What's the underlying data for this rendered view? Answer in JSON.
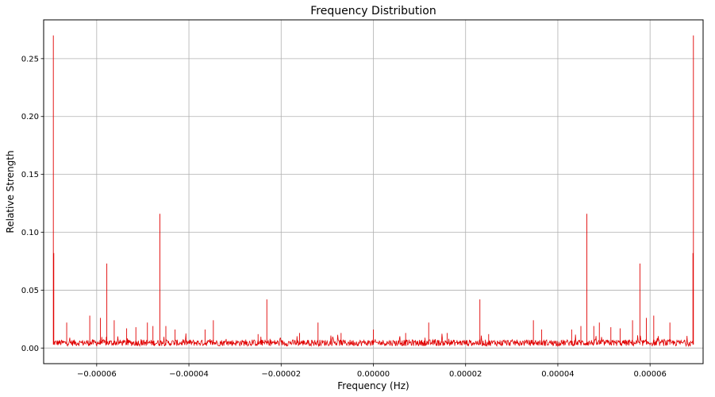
{
  "chart_data": {
    "type": "line",
    "title": "Frequency Distribution",
    "xlabel": "Frequency (Hz)",
    "ylabel": "Relative Strength",
    "xlim": [
      -7.15e-05,
      7.15e-05
    ],
    "ylim": [
      -0.0135,
      0.2835
    ],
    "x_ticks": [
      -6e-05,
      -4e-05,
      -2e-05,
      0.0,
      2e-05,
      4e-05,
      6e-05
    ],
    "x_tick_labels": [
      "−0.00006",
      "−0.00004",
      "−0.00002",
      "0.00000",
      "0.00002",
      "0.00004",
      "0.00006"
    ],
    "y_ticks": [
      0.0,
      0.05,
      0.1,
      0.15,
      0.2,
      0.25
    ],
    "y_tick_labels": [
      "0.00",
      "0.05",
      "0.10",
      "0.15",
      "0.20",
      "0.25"
    ],
    "grid": true,
    "series": [
      {
        "color": "#e00000",
        "x_range": [
          -6.94e-05,
          6.94e-05
        ],
        "noise_floor": 0.005,
        "peaks": [
          {
            "x": -6.94e-05,
            "y": 0.27
          },
          {
            "x": -6.93e-05,
            "y": 0.082
          },
          {
            "x": -6.65e-05,
            "y": 0.022
          },
          {
            "x": -6.15e-05,
            "y": 0.028
          },
          {
            "x": -5.92e-05,
            "y": 0.026
          },
          {
            "x": -5.78e-05,
            "y": 0.073
          },
          {
            "x": -5.62e-05,
            "y": 0.024
          },
          {
            "x": -5.35e-05,
            "y": 0.017
          },
          {
            "x": -5.15e-05,
            "y": 0.018
          },
          {
            "x": -4.9e-05,
            "y": 0.022
          },
          {
            "x": -4.78e-05,
            "y": 0.019
          },
          {
            "x": -4.63e-05,
            "y": 0.116
          },
          {
            "x": -4.5e-05,
            "y": 0.019
          },
          {
            "x": -4.3e-05,
            "y": 0.016
          },
          {
            "x": -3.65e-05,
            "y": 0.016
          },
          {
            "x": -3.47e-05,
            "y": 0.024
          },
          {
            "x": -2.5e-05,
            "y": 0.012
          },
          {
            "x": -2.31e-05,
            "y": 0.042
          },
          {
            "x": -1.6e-05,
            "y": 0.013
          },
          {
            "x": -1.2e-05,
            "y": 0.022
          },
          {
            "x": -7e-06,
            "y": 0.013
          },
          {
            "x": 0.0,
            "y": 0.016
          },
          {
            "x": 7e-06,
            "y": 0.013
          },
          {
            "x": 1.2e-05,
            "y": 0.022
          },
          {
            "x": 1.6e-05,
            "y": 0.013
          },
          {
            "x": 2.31e-05,
            "y": 0.042
          },
          {
            "x": 2.5e-05,
            "y": 0.012
          },
          {
            "x": 3.47e-05,
            "y": 0.024
          },
          {
            "x": 3.65e-05,
            "y": 0.016
          },
          {
            "x": 4.3e-05,
            "y": 0.016
          },
          {
            "x": 4.5e-05,
            "y": 0.019
          },
          {
            "x": 4.63e-05,
            "y": 0.116
          },
          {
            "x": 4.78e-05,
            "y": 0.019
          },
          {
            "x": 4.9e-05,
            "y": 0.022
          },
          {
            "x": 5.15e-05,
            "y": 0.018
          },
          {
            "x": 5.35e-05,
            "y": 0.017
          },
          {
            "x": 5.62e-05,
            "y": 0.024
          },
          {
            "x": 5.78e-05,
            "y": 0.073
          },
          {
            "x": 5.92e-05,
            "y": 0.026
          },
          {
            "x": 6.08e-05,
            "y": 0.028
          },
          {
            "x": 6.43e-05,
            "y": 0.022
          },
          {
            "x": 6.93e-05,
            "y": 0.082
          },
          {
            "x": 6.94e-05,
            "y": 0.27
          }
        ]
      }
    ]
  }
}
